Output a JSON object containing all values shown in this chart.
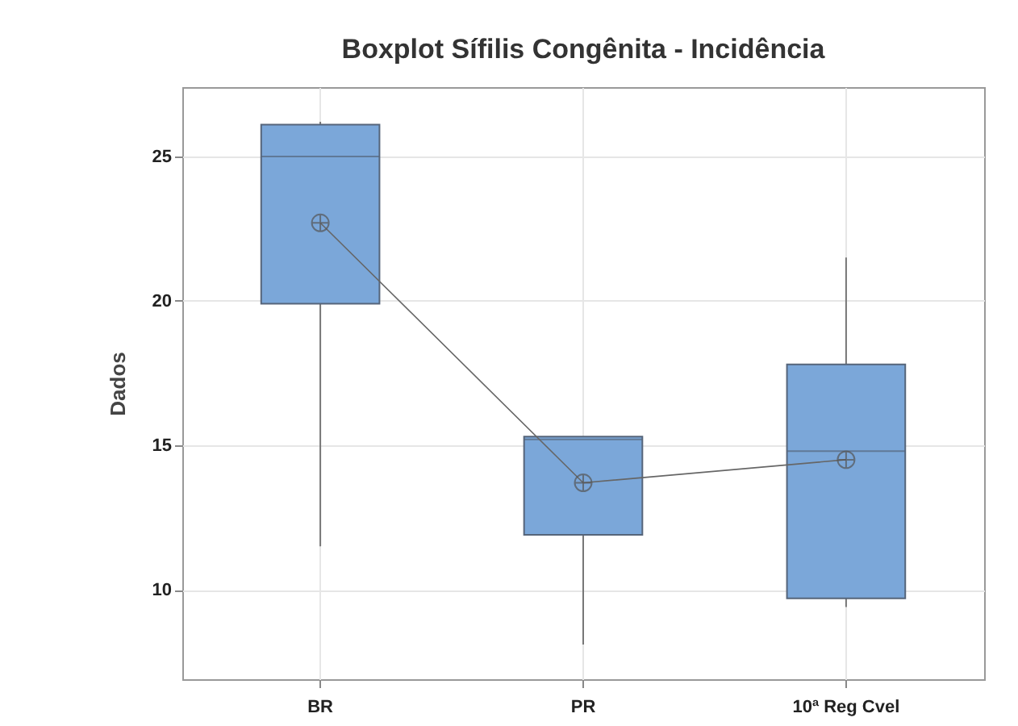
{
  "chart_data": {
    "type": "box",
    "title": "Boxplot Sífilis Congênita - Incidência",
    "ylabel": "Dados",
    "categories": [
      "BR",
      "PR",
      "10ª Reg Cvel"
    ],
    "series": [
      {
        "color": "#7ba7d9",
        "boxes": [
          {
            "low": 11.5,
            "q1": 19.9,
            "median": 25.0,
            "q3": 26.1,
            "high": 26.2,
            "mean": 22.7
          },
          {
            "low": 8.1,
            "q1": 11.9,
            "median": 15.2,
            "q3": 15.3,
            "high": 15.3,
            "mean": 13.7
          },
          {
            "low": 9.4,
            "q1": 9.7,
            "median": 14.8,
            "q3": 17.8,
            "high": 21.5,
            "mean": 14.5
          }
        ]
      },
      {
        "type": "line",
        "color": "#666666",
        "values": [
          22.7,
          13.7,
          14.5
        ]
      }
    ],
    "ylim": [
      6.9,
      27.4
    ],
    "yticks": [
      10,
      15,
      20,
      25
    ],
    "grid": true
  }
}
